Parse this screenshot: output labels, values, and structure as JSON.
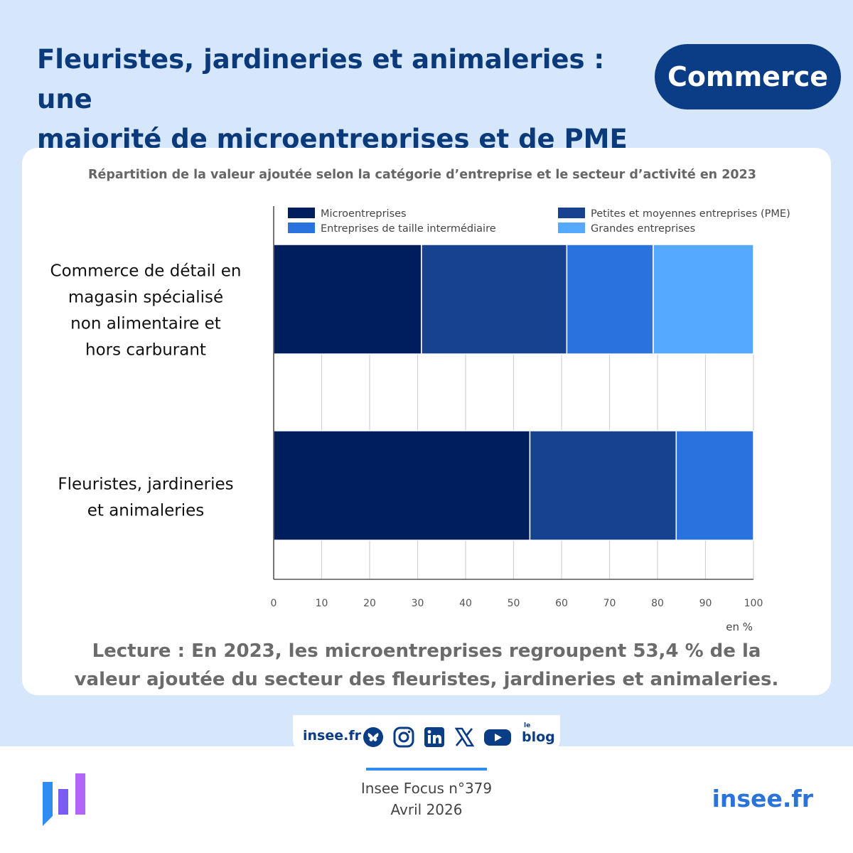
{
  "header": {
    "title_line1": "Fleuristes, jardineries et animaleries : une",
    "title_line2": "majorité de microentreprises et de PME",
    "badge": "Commerce"
  },
  "chart_data": {
    "type": "bar",
    "orientation": "horizontal",
    "stacked": true,
    "title": "Répartition de la valeur ajoutée selon la catégorie d’entreprise et le secteur d’activité en 2023",
    "categories": [
      [
        "Commerce de détail en",
        "magasin spécialisé",
        "non alimentaire et",
        "hors carburant"
      ],
      [
        "Fleuristes, jardineries",
        "et animaleries"
      ]
    ],
    "series": [
      {
        "name": "Microentreprises",
        "color": "#001e5e",
        "values": [
          30.8,
          53.4
        ]
      },
      {
        "name": "Petites et moyennes entreprises (PME)",
        "color": "#17428f",
        "values": [
          30.3,
          30.5
        ]
      },
      {
        "name": "Entreprises de taille intermédiaire",
        "color": "#2a72de",
        "values": [
          18.0,
          16.1
        ]
      },
      {
        "name": "Grandes entreprises",
        "color": "#55a9ff",
        "values": [
          20.9,
          0
        ]
      }
    ],
    "xlim": [
      0,
      100
    ],
    "xticks": [
      "0",
      "10",
      "20",
      "30",
      "40",
      "50",
      "60",
      "70",
      "80",
      "90",
      "100"
    ],
    "xlabel": "en %",
    "grid": true,
    "legend_position": "top"
  },
  "reading": {
    "line1": "Lecture : En 2023, les microentreprises regroupent 53,4 % de la",
    "line2": "valeur ajoutée du secteur des fleuristes, jardineries et animaleries."
  },
  "social": {
    "site": "insee.fr",
    "icons": [
      "bluesky-icon",
      "instagram-icon",
      "linkedin-icon",
      "x-icon",
      "youtube-icon",
      "blog-icon"
    ],
    "blog_le": "le",
    "blog_word": "blog"
  },
  "publication": {
    "name": "Insee Focus n°379",
    "date": "Avril 2026"
  },
  "footer": {
    "site": "insee.fr"
  }
}
